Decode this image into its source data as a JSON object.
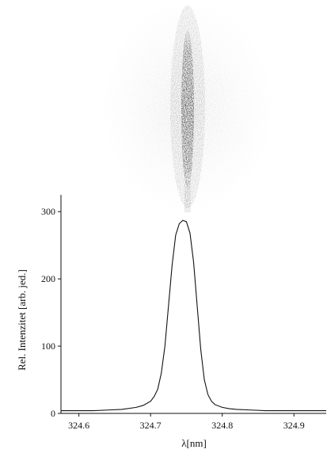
{
  "chart_data": {
    "type": "line",
    "title": "",
    "xlabel": "λ[nm]",
    "ylabel": "Rel. Intenzitet [arb. jed.]",
    "xlim": [
      324.575,
      324.945
    ],
    "ylim": [
      0,
      325
    ],
    "x_ticks": [
      324.6,
      324.7,
      324.8,
      324.9
    ],
    "x_tick_labels": [
      "324.6",
      "324.7",
      "324.8",
      "324.9"
    ],
    "y_ticks": [
      0,
      100,
      200,
      300
    ],
    "y_tick_labels": [
      "0",
      "100",
      "200",
      "300"
    ],
    "grid": false,
    "legend": "none",
    "line_color": "#111111",
    "image_panel": "spectral-line-photograph",
    "series": [
      {
        "x": [
          324.575,
          324.6,
          324.62,
          324.64,
          324.66,
          324.68,
          324.69,
          324.7,
          324.705,
          324.71,
          324.715,
          324.72,
          324.725,
          324.73,
          324.735,
          324.74,
          324.745,
          324.75,
          324.755,
          324.76,
          324.765,
          324.77,
          324.775,
          324.78,
          324.785,
          324.79,
          324.8,
          324.81,
          324.82,
          324.84,
          324.86,
          324.88,
          324.9,
          324.92,
          324.945
        ],
        "y": [
          4,
          4,
          4,
          5,
          6,
          9,
          12,
          18,
          25,
          36,
          60,
          100,
          160,
          220,
          265,
          282,
          287,
          285,
          268,
          225,
          160,
          95,
          50,
          28,
          18,
          13,
          9,
          7,
          6,
          5,
          4,
          4,
          4,
          4,
          4
        ]
      }
    ]
  }
}
